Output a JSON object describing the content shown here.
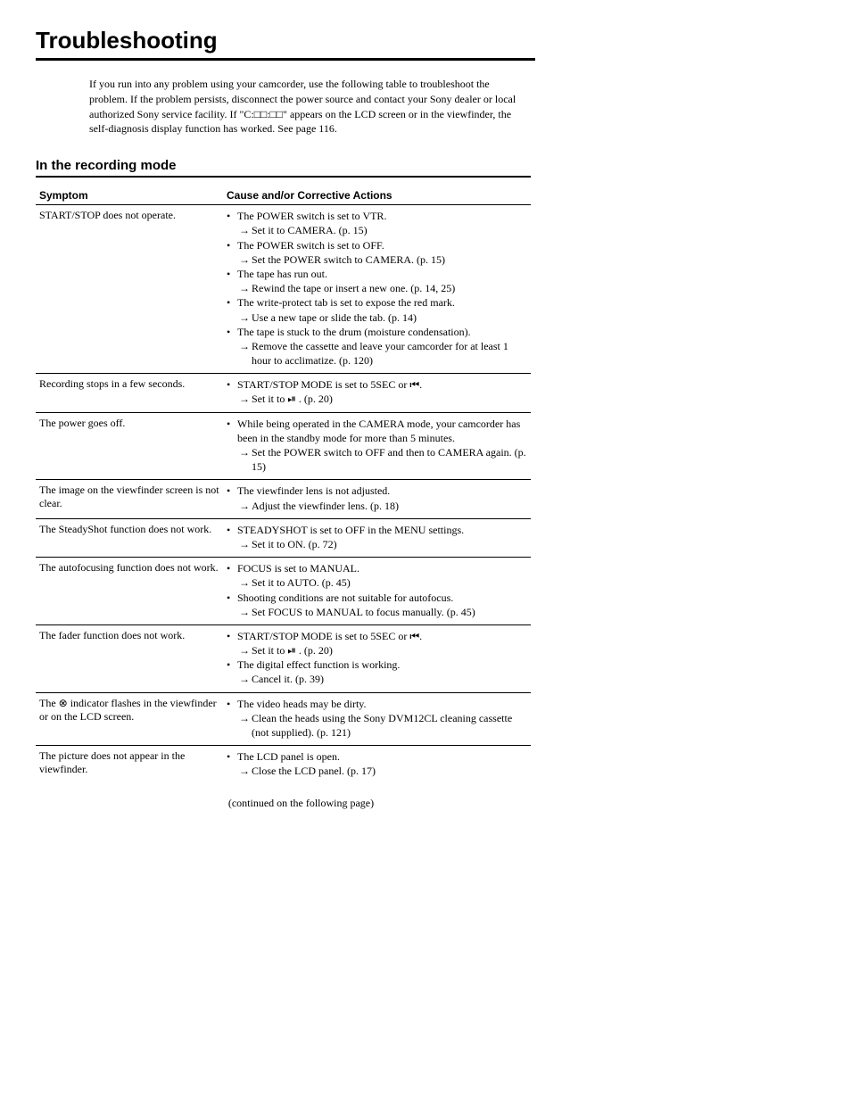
{
  "title": "Troubleshooting",
  "intro": "If you run into any problem using your camcorder, use the following table to troubleshoot the problem. If the problem persists, disconnect the power source and contact your Sony dealer or local authorized Sony service facility. If \"C:□□:□□\" appears on the LCD screen or in the viewfinder, the self-diagnosis display function has worked. See page 116.",
  "section_title": "In the recording mode",
  "headers": {
    "symptom": "Symptom",
    "cause": "Cause and/or Corrective Actions"
  },
  "rows": [
    {
      "symptom": "START/STOP does not operate.",
      "items": [
        {
          "type": "bullet",
          "text": "The POWER switch is set to VTR."
        },
        {
          "type": "arrow",
          "text": "Set it to CAMERA. (p. 15)"
        },
        {
          "type": "bullet",
          "text": "The POWER switch is set to OFF."
        },
        {
          "type": "arrow",
          "text": "Set the POWER switch to CAMERA. (p. 15)"
        },
        {
          "type": "bullet",
          "text": "The tape has run out."
        },
        {
          "type": "arrow",
          "text": "Rewind the tape or insert a new one. (p. 14, 25)"
        },
        {
          "type": "bullet",
          "text": "The write-protect tab is set to expose the red mark."
        },
        {
          "type": "arrow",
          "text": "Use a new tape or slide the tab. (p. 14)"
        },
        {
          "type": "bullet",
          "text": "The tape is stuck to the drum (moisture condensation)."
        },
        {
          "type": "arrow",
          "text": "Remove the cassette and leave your camcorder for at least 1 hour to acclimatize. (p. 120)"
        }
      ]
    },
    {
      "symptom": "Recording stops in a few seconds.",
      "items": [
        {
          "type": "bullet",
          "text": "START/STOP MODE is set to 5SEC or ⏮."
        },
        {
          "type": "arrow",
          "text": "Set it to ⏯ . (p. 20)"
        }
      ]
    },
    {
      "symptom": "The power goes off.",
      "items": [
        {
          "type": "bullet",
          "text": "While being operated in the CAMERA mode, your camcorder has been in the standby mode for more than 5 minutes."
        },
        {
          "type": "arrow",
          "text": "Set the POWER switch to OFF and then to CAMERA again. (p. 15)"
        }
      ]
    },
    {
      "symptom": "The image on the viewfinder screen is not clear.",
      "items": [
        {
          "type": "bullet",
          "text": "The viewfinder lens is not adjusted."
        },
        {
          "type": "arrow",
          "text": "Adjust the viewfinder lens. (p. 18)"
        }
      ]
    },
    {
      "symptom": "The SteadyShot function does not work.",
      "items": [
        {
          "type": "bullet",
          "text": "STEADYSHOT is set to OFF in the MENU settings."
        },
        {
          "type": "arrow",
          "text": "Set it to ON. (p. 72)"
        }
      ]
    },
    {
      "symptom": "The autofocusing function does not work.",
      "items": [
        {
          "type": "bullet",
          "text": "FOCUS is set to MANUAL."
        },
        {
          "type": "arrow",
          "text": "Set it to AUTO. (p. 45)"
        },
        {
          "type": "bullet",
          "text": "Shooting conditions are not suitable for autofocus."
        },
        {
          "type": "arrow",
          "text": "Set FOCUS to MANUAL to focus manually. (p. 45)"
        }
      ]
    },
    {
      "symptom": "The fader function does not work.",
      "items": [
        {
          "type": "bullet",
          "text": "START/STOP MODE is set to 5SEC or ⏮."
        },
        {
          "type": "arrow",
          "text": "Set it to ⏯ . (p. 20)"
        },
        {
          "type": "bullet",
          "text": "The digital effect function is working."
        },
        {
          "type": "arrow",
          "text": "Cancel it. (p. 39)"
        }
      ]
    },
    {
      "symptom": "The ⊗ indicator flashes in the viewfinder or on the LCD screen.",
      "items": [
        {
          "type": "bullet",
          "text": "The video heads may be dirty."
        },
        {
          "type": "arrow",
          "text": "Clean the heads using the Sony DVM12CL cleaning cassette (not supplied). (p. 121)"
        }
      ]
    },
    {
      "symptom": "The picture does not appear in the viewfinder.",
      "items": [
        {
          "type": "bullet",
          "text": "The LCD panel is open."
        },
        {
          "type": "arrow",
          "text": "Close the LCD panel. (p. 17)"
        }
      ]
    }
  ],
  "continued": "(continued on the following page)"
}
